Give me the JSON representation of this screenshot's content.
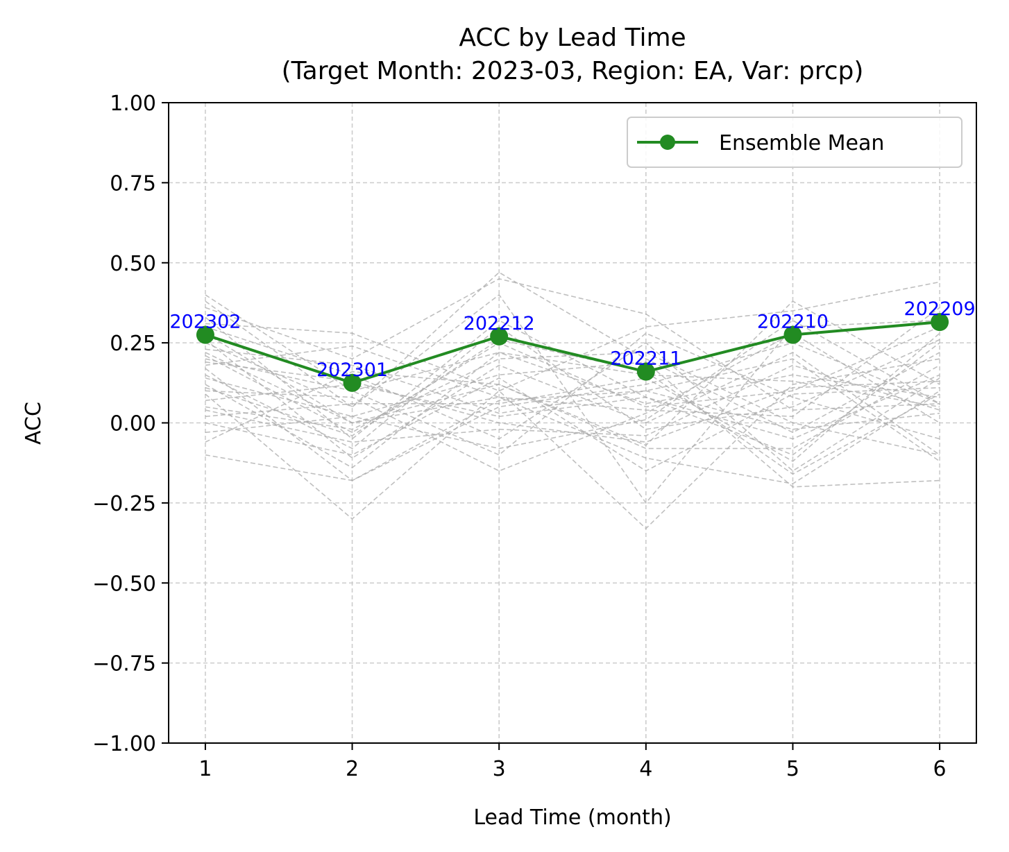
{
  "chart_data": {
    "type": "line",
    "title": "ACC by Lead Time",
    "subtitle": "(Target Month: 2023-03, Region: EA, Var: prcp)",
    "xlabel": "Lead Time (month)",
    "ylabel": "ACC",
    "xlim": [
      0.75,
      6.25
    ],
    "ylim": [
      -1.0,
      1.0
    ],
    "x": [
      1,
      2,
      3,
      4,
      5,
      6
    ],
    "xticks": [
      "1",
      "2",
      "3",
      "4",
      "5",
      "6"
    ],
    "yticks": [
      -1.0,
      -0.75,
      -0.5,
      -0.25,
      0.0,
      0.25,
      0.5,
      0.75,
      1.0
    ],
    "ytick_labels": [
      "−1.00",
      "−0.75",
      "−0.50",
      "−0.25",
      "0.00",
      "0.25",
      "0.50",
      "0.75",
      "1.00"
    ],
    "grid": true,
    "legend_position": "top-right",
    "series": [
      {
        "name": "Ensemble Mean",
        "color": "#228b22",
        "values": [
          0.275,
          0.125,
          0.27,
          0.16,
          0.275,
          0.315
        ],
        "point_labels": [
          "202302",
          "202301",
          "202212",
          "202211",
          "202210",
          "202209"
        ],
        "point_label_color": "#0000ff"
      }
    ],
    "member_lines": {
      "color": "#aaaaaa",
      "style": "dashed",
      "values": [
        [
          0.4,
          0.1,
          0.22,
          0.15,
          0.13,
          0.05
        ],
        [
          0.38,
          0.05,
          0.47,
          0.2,
          -0.03,
          0.22
        ],
        [
          0.36,
          0.2,
          0.45,
          0.34,
          0.04,
          0.06
        ],
        [
          0.33,
          -0.05,
          0.32,
          0.08,
          -0.1,
          0.25
        ],
        [
          0.31,
          0.28,
          0.1,
          0.3,
          0.35,
          0.44
        ],
        [
          0.3,
          0.15,
          -0.05,
          0.25,
          -0.15,
          0.14
        ],
        [
          0.28,
          0.0,
          0.12,
          -0.07,
          0.38,
          0.12
        ],
        [
          0.26,
          -0.11,
          0.18,
          0.0,
          0.22,
          -0.1
        ],
        [
          0.25,
          0.05,
          0.4,
          -0.25,
          0.3,
          0.32
        ],
        [
          0.23,
          0.18,
          0.03,
          0.1,
          -0.02,
          0.03
        ],
        [
          0.21,
          -0.03,
          0.25,
          0.05,
          0.1,
          0.3
        ],
        [
          0.2,
          0.1,
          -0.1,
          0.28,
          0.08,
          -0.05
        ],
        [
          0.18,
          0.24,
          0.08,
          -0.11,
          -0.19,
          0.1
        ],
        [
          0.17,
          -0.18,
          0.05,
          0.12,
          0.25,
          0.06
        ],
        [
          0.15,
          -0.08,
          0.3,
          -0.02,
          0.05,
          0.26
        ],
        [
          0.14,
          0.02,
          0.15,
          0.19,
          -0.2,
          -0.18
        ],
        [
          0.12,
          -0.14,
          0.22,
          0.06,
          0.15,
          0.08
        ],
        [
          0.1,
          0.08,
          -0.15,
          0.03,
          0.28,
          0.0
        ],
        [
          0.09,
          -0.3,
          0.1,
          -0.33,
          0.12,
          0.2
        ],
        [
          0.07,
          0.12,
          0.02,
          0.08,
          -0.05,
          0.15
        ],
        [
          0.05,
          -0.02,
          0.2,
          0.22,
          0.0,
          -0.1
        ],
        [
          0.04,
          -0.06,
          -0.02,
          -0.04,
          0.18,
          0.04
        ],
        [
          0.02,
          0.06,
          0.06,
          0.14,
          -0.12,
          0.28
        ],
        [
          0.0,
          -0.1,
          0.14,
          -0.15,
          0.09,
          0.11
        ],
        [
          -0.03,
          0.02,
          -0.08,
          0.01,
          0.32,
          0.06
        ],
        [
          -0.06,
          0.16,
          0.12,
          -0.08,
          -0.08,
          0.18
        ],
        [
          -0.1,
          -0.18,
          0.07,
          0.1,
          0.2,
          -0.12
        ],
        [
          0.22,
          0.0,
          0.08,
          0.04,
          0.02,
          0.36
        ],
        [
          0.19,
          0.13,
          0.0,
          -0.06,
          0.11,
          0.13
        ],
        [
          0.11,
          -0.04,
          0.26,
          0.16,
          -0.16,
          0.09
        ]
      ]
    }
  }
}
